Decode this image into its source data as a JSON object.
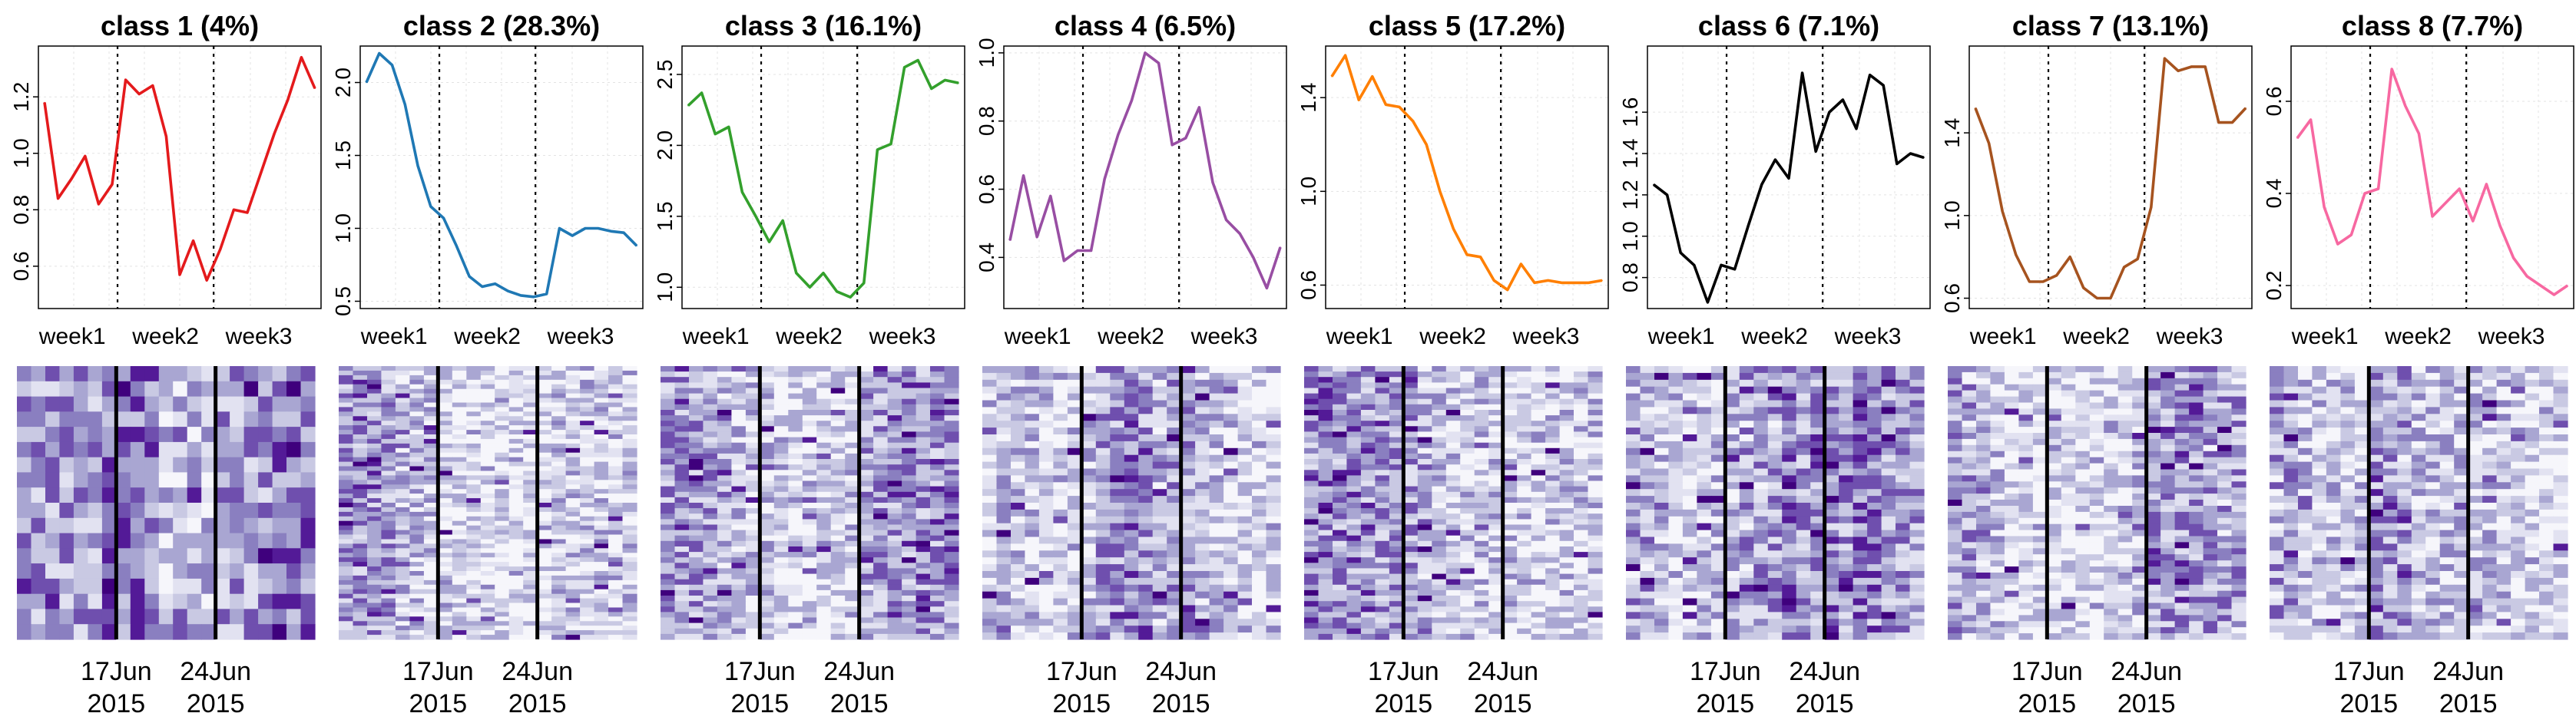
{
  "figure": {
    "x_tick_labels": [
      "week1",
      "week2",
      "week3"
    ],
    "date_labels": [
      {
        "day": "17Jun",
        "year": "2015"
      },
      {
        "day": "24Jun",
        "year": "2015"
      }
    ],
    "heatmap_palette": [
      "#f6f6fb",
      "#e2e2f1",
      "#c9c9e3",
      "#a9a6d2",
      "#8a7fc0",
      "#6f4fae",
      "#531a97",
      "#3f007d"
    ]
  },
  "chart_data": [
    {
      "type": "line",
      "title": "class 1  (4%)",
      "color": "#e41a1c",
      "ylim": [
        0.45,
        1.38
      ],
      "yticks": [
        {
          "value": 0.6,
          "label": "0.6"
        },
        {
          "value": 0.8,
          "label": "0.8"
        },
        {
          "value": 1.0,
          "label": "1.0"
        },
        {
          "value": 1.2,
          "label": "1.2"
        }
      ],
      "x_ticks": [
        "week1",
        "week2",
        "week3"
      ],
      "values": [
        1.18,
        0.84,
        0.91,
        0.99,
        0.82,
        0.89,
        1.26,
        1.21,
        1.24,
        1.06,
        0.57,
        0.69,
        0.55,
        0.66,
        0.8,
        0.79,
        0.93,
        1.07,
        1.19,
        1.34,
        1.23
      ],
      "heat_mean": 0.5,
      "heat_rows": 18
    },
    {
      "type": "line",
      "title": "class 2  (28.3%)",
      "color": "#1f78b4",
      "ylim": [
        0.45,
        2.25
      ],
      "yticks": [
        {
          "value": 0.5,
          "label": "0.5"
        },
        {
          "value": 1.0,
          "label": "1.0"
        },
        {
          "value": 1.5,
          "label": "1.5"
        },
        {
          "value": 2.0,
          "label": "2.0"
        }
      ],
      "x_ticks": [
        "week1",
        "week2",
        "week3"
      ],
      "values": [
        2.0,
        2.2,
        2.12,
        1.85,
        1.43,
        1.15,
        1.07,
        0.88,
        0.67,
        0.6,
        0.62,
        0.57,
        0.54,
        0.53,
        0.55,
        1.0,
        0.95,
        1.0,
        1.0,
        0.98,
        0.97,
        0.88
      ],
      "heat_mean": 0.28,
      "heat_rows": 60
    },
    {
      "type": "line",
      "title": "class 3  (16.1%)",
      "color": "#33a02c",
      "ylim": [
        0.85,
        2.7
      ],
      "yticks": [
        {
          "value": 1.0,
          "label": "1.0"
        },
        {
          "value": 1.5,
          "label": "1.5"
        },
        {
          "value": 2.0,
          "label": "2.0"
        },
        {
          "value": 2.5,
          "label": "2.5"
        }
      ],
      "x_ticks": [
        "week1",
        "week2",
        "week3"
      ],
      "values": [
        2.28,
        2.37,
        2.08,
        2.13,
        1.67,
        1.5,
        1.32,
        1.47,
        1.1,
        1.0,
        1.1,
        0.97,
        0.93,
        1.03,
        1.97,
        2.01,
        2.55,
        2.6,
        2.4,
        2.46,
        2.44
      ],
      "heat_mean": 0.34,
      "heat_rows": 50
    },
    {
      "type": "line",
      "title": "class 4  (6.5%)",
      "color": "#984ea3",
      "ylim": [
        0.25,
        1.02
      ],
      "yticks": [
        {
          "value": 0.4,
          "label": "0.4"
        },
        {
          "value": 0.6,
          "label": "0.6"
        },
        {
          "value": 0.8,
          "label": "0.8"
        },
        {
          "value": 1.0,
          "label": "1.0"
        }
      ],
      "x_ticks": [
        "week1",
        "week2",
        "week3"
      ],
      "values": [
        0.45,
        0.64,
        0.46,
        0.58,
        0.39,
        0.42,
        0.42,
        0.63,
        0.76,
        0.86,
        1.0,
        0.97,
        0.73,
        0.75,
        0.84,
        0.62,
        0.51,
        0.47,
        0.4,
        0.31,
        0.43
      ],
      "heat_mean": 0.3,
      "heat_rows": 40
    },
    {
      "type": "line",
      "title": "class 5  (17.2%)",
      "color": "#ff7f00",
      "ylim": [
        0.5,
        1.62
      ],
      "yticks": [
        {
          "value": 0.6,
          "label": "0.6"
        },
        {
          "value": 1.0,
          "label": "1.0"
        },
        {
          "value": 1.4,
          "label": "1.4"
        }
      ],
      "x_ticks": [
        "week1",
        "week2",
        "week3"
      ],
      "values": [
        1.49,
        1.58,
        1.39,
        1.49,
        1.37,
        1.36,
        1.3,
        1.2,
        1.0,
        0.84,
        0.73,
        0.72,
        0.62,
        0.58,
        0.69,
        0.61,
        0.62,
        0.61,
        0.61,
        0.61,
        0.62
      ],
      "heat_mean": 0.36,
      "heat_rows": 50
    },
    {
      "type": "line",
      "title": "class 6  (7.1%)",
      "color": "#000000",
      "ylim": [
        0.65,
        1.92
      ],
      "yticks": [
        {
          "value": 0.8,
          "label": "0.8"
        },
        {
          "value": 1.0,
          "label": "1.0"
        },
        {
          "value": 1.2,
          "label": "1.2"
        },
        {
          "value": 1.4,
          "label": "1.4"
        },
        {
          "value": 1.6,
          "label": "1.6"
        }
      ],
      "x_ticks": [
        "week1",
        "week2",
        "week3"
      ],
      "values": [
        1.25,
        1.2,
        0.92,
        0.86,
        0.68,
        0.86,
        0.84,
        1.05,
        1.25,
        1.37,
        1.28,
        1.79,
        1.41,
        1.6,
        1.66,
        1.52,
        1.78,
        1.73,
        1.35,
        1.4,
        1.38
      ],
      "heat_mean": 0.4,
      "heat_rows": 40
    },
    {
      "type": "line",
      "title": "class 7  (13.1%)",
      "color": "#a6531f",
      "ylim": [
        0.55,
        1.82
      ],
      "yticks": [
        {
          "value": 0.6,
          "label": "0.6"
        },
        {
          "value": 1.0,
          "label": "1.0"
        },
        {
          "value": 1.4,
          "label": "1.4"
        }
      ],
      "x_ticks": [
        "week1",
        "week2",
        "week3"
      ],
      "values": [
        1.52,
        1.35,
        1.02,
        0.81,
        0.68,
        0.68,
        0.71,
        0.8,
        0.65,
        0.6,
        0.6,
        0.75,
        0.79,
        1.04,
        1.76,
        1.7,
        1.72,
        1.72,
        1.45,
        1.45,
        1.52
      ],
      "heat_mean": 0.28,
      "heat_rows": 45
    },
    {
      "type": "line",
      "title": "class 8  (7.7%)",
      "color": "#f768a1",
      "ylim": [
        0.15,
        0.72
      ],
      "yticks": [
        {
          "value": 0.2,
          "label": "0.2"
        },
        {
          "value": 0.4,
          "label": "0.4"
        },
        {
          "value": 0.6,
          "label": "0.6"
        }
      ],
      "x_ticks": [
        "week1",
        "week2",
        "week3"
      ],
      "values": [
        0.52,
        0.56,
        0.37,
        0.29,
        0.31,
        0.4,
        0.41,
        0.67,
        0.59,
        0.53,
        0.35,
        0.38,
        0.41,
        0.34,
        0.42,
        0.33,
        0.26,
        0.22,
        0.2,
        0.18,
        0.2
      ],
      "heat_mean": 0.3,
      "heat_rows": 40
    }
  ]
}
